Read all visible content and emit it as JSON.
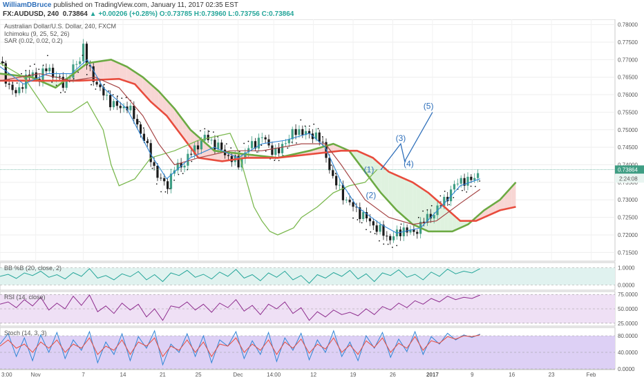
{
  "header": {
    "author": "WilliamDBruce",
    "published_text": "published on TradingView.com, January 11, 2017 02:35 EST",
    "symbol": "FX:AUDUSD, 240",
    "last": "0.73864",
    "change": "▲ +0.00206 (+0.28%)",
    "ohlc": {
      "o": "O:0.73785",
      "h": "H:0.73960",
      "l": "L:0.73756",
      "c": "C:0.73864"
    }
  },
  "colors": {
    "bull": "#3f9e84",
    "bear": "#1b1b1b",
    "cloud_up": "#dff2df",
    "cloud_down": "#f8d6d4",
    "span_a": "#e84c3d",
    "span_b": "#6caa43",
    "lagging": "#7cb950",
    "tenkan": "#2f86d6",
    "kijun": "#a54545",
    "accent": "#2e6fba"
  },
  "chart_data": [
    {
      "type": "line",
      "panel": "price",
      "title": "Australian Dollar/U.S. Dollar, 240, FXCM",
      "indicators": [
        "Ichimoku (9, 25, 52, 26)",
        "SAR (0.02, 0.02, 0.2)"
      ],
      "y_ticks": [
        "0.78000",
        "0.77500",
        "0.77000",
        "0.76500",
        "0.76000",
        "0.75500",
        "0.75000",
        "0.74500",
        "0.74000",
        "0.73500",
        "0.73000",
        "0.72500",
        "0.72000",
        "0.71500"
      ],
      "ylim": [
        0.7125,
        0.7815
      ],
      "last_price_label": "0.73864",
      "countdown_label": "2:24:08",
      "x_ticks": [
        "3:00",
        "Nov",
        "7",
        "14",
        "21",
        "25",
        "Dec",
        "14:00",
        "12",
        "19",
        "26",
        "2017",
        "9",
        "16",
        "23",
        "Feb"
      ],
      "x_positions": [
        0,
        9,
        21,
        31,
        41,
        50,
        60,
        69,
        79,
        89,
        99,
        109,
        119,
        129,
        139,
        149
      ],
      "x_range": [
        0,
        155
      ],
      "close_path": [
        [
          0,
          0.7695
        ],
        [
          2,
          0.763
        ],
        [
          4,
          0.76
        ],
        [
          6,
          0.764
        ],
        [
          8,
          0.766
        ],
        [
          10,
          0.7645
        ],
        [
          12,
          0.768
        ],
        [
          14,
          0.765
        ],
        [
          16,
          0.763
        ],
        [
          18,
          0.7665
        ],
        [
          20,
          0.77
        ],
        [
          21,
          0.774
        ],
        [
          22,
          0.768
        ],
        [
          24,
          0.764
        ],
        [
          26,
          0.76
        ],
        [
          28,
          0.758
        ],
        [
          30,
          0.756
        ],
        [
          32,
          0.757
        ],
        [
          34,
          0.753
        ],
        [
          36,
          0.748
        ],
        [
          38,
          0.742
        ],
        [
          40,
          0.736
        ],
        [
          42,
          0.734
        ],
        [
          44,
          0.739
        ],
        [
          46,
          0.74
        ],
        [
          48,
          0.743
        ],
        [
          50,
          0.746
        ],
        [
          52,
          0.748
        ],
        [
          54,
          0.746
        ],
        [
          56,
          0.744
        ],
        [
          58,
          0.742
        ],
        [
          60,
          0.74
        ],
        [
          62,
          0.744
        ],
        [
          64,
          0.746
        ],
        [
          66,
          0.748
        ],
        [
          68,
          0.745
        ],
        [
          70,
          0.743
        ],
        [
          72,
          0.747
        ],
        [
          74,
          0.749
        ],
        [
          76,
          0.75
        ],
        [
          78,
          0.748
        ],
        [
          80,
          0.749
        ],
        [
          82,
          0.743
        ],
        [
          84,
          0.736
        ],
        [
          86,
          0.732
        ],
        [
          88,
          0.729
        ],
        [
          90,
          0.727
        ],
        [
          92,
          0.725
        ],
        [
          94,
          0.723
        ],
        [
          96,
          0.721
        ],
        [
          98,
          0.719
        ],
        [
          100,
          0.72
        ],
        [
          102,
          0.722
        ],
        [
          104,
          0.72
        ],
        [
          106,
          0.723
        ],
        [
          108,
          0.725
        ],
        [
          110,
          0.727
        ],
        [
          112,
          0.73
        ],
        [
          114,
          0.733
        ],
        [
          116,
          0.736
        ],
        [
          118,
          0.735
        ],
        [
          120,
          0.737
        ],
        [
          121,
          0.7386
        ]
      ],
      "tenkan_path": [
        [
          0,
          0.768
        ],
        [
          6,
          0.763
        ],
        [
          12,
          0.766
        ],
        [
          18,
          0.766
        ],
        [
          22,
          0.77
        ],
        [
          26,
          0.762
        ],
        [
          32,
          0.756
        ],
        [
          38,
          0.743
        ],
        [
          42,
          0.736
        ],
        [
          48,
          0.742
        ],
        [
          54,
          0.745
        ],
        [
          60,
          0.742
        ],
        [
          66,
          0.746
        ],
        [
          72,
          0.747
        ],
        [
          78,
          0.749
        ],
        [
          82,
          0.745
        ],
        [
          86,
          0.735
        ],
        [
          90,
          0.728
        ],
        [
          96,
          0.723
        ],
        [
          100,
          0.7205
        ],
        [
          106,
          0.722
        ],
        [
          112,
          0.729
        ],
        [
          116,
          0.734
        ],
        [
          121,
          0.736
        ]
      ],
      "kijun_path": [
        [
          0,
          0.764
        ],
        [
          10,
          0.766
        ],
        [
          18,
          0.764
        ],
        [
          24,
          0.765
        ],
        [
          30,
          0.762
        ],
        [
          36,
          0.754
        ],
        [
          40,
          0.746
        ],
        [
          44,
          0.74
        ],
        [
          50,
          0.742
        ],
        [
          58,
          0.744
        ],
        [
          66,
          0.744
        ],
        [
          76,
          0.746
        ],
        [
          82,
          0.746
        ],
        [
          86,
          0.74
        ],
        [
          92,
          0.73
        ],
        [
          98,
          0.725
        ],
        [
          104,
          0.723
        ],
        [
          110,
          0.724
        ],
        [
          116,
          0.729
        ],
        [
          121,
          0.733
        ]
      ],
      "span_a_path": [
        [
          0,
          0.764
        ],
        [
          20,
          0.764
        ],
        [
          30,
          0.7645
        ],
        [
          34,
          0.763
        ],
        [
          38,
          0.758
        ],
        [
          42,
          0.754
        ],
        [
          46,
          0.748
        ],
        [
          50,
          0.742
        ],
        [
          56,
          0.741
        ],
        [
          62,
          0.742
        ],
        [
          70,
          0.742
        ],
        [
          78,
          0.743
        ],
        [
          86,
          0.744
        ],
        [
          90,
          0.744
        ],
        [
          94,
          0.742
        ],
        [
          98,
          0.738
        ],
        [
          104,
          0.735
        ],
        [
          108,
          0.732
        ],
        [
          112,
          0.728
        ],
        [
          116,
          0.724
        ],
        [
          120,
          0.724
        ],
        [
          126,
          0.727
        ],
        [
          130,
          0.728
        ]
      ],
      "span_b_path": [
        [
          0,
          0.766
        ],
        [
          8,
          0.765
        ],
        [
          14,
          0.762
        ],
        [
          22,
          0.769
        ],
        [
          28,
          0.77
        ],
        [
          32,
          0.768
        ],
        [
          36,
          0.765
        ],
        [
          40,
          0.761
        ],
        [
          44,
          0.756
        ],
        [
          48,
          0.75
        ],
        [
          54,
          0.744
        ],
        [
          62,
          0.743
        ],
        [
          70,
          0.742
        ],
        [
          78,
          0.744
        ],
        [
          84,
          0.746
        ],
        [
          88,
          0.744
        ],
        [
          92,
          0.738
        ],
        [
          96,
          0.732
        ],
        [
          100,
          0.727
        ],
        [
          104,
          0.723
        ],
        [
          108,
          0.721
        ],
        [
          114,
          0.721
        ],
        [
          118,
          0.723
        ],
        [
          122,
          0.727
        ],
        [
          126,
          0.73
        ],
        [
          130,
          0.735
        ]
      ],
      "lagging_path": [
        [
          0,
          0.769
        ],
        [
          6,
          0.765
        ],
        [
          12,
          0.755
        ],
        [
          18,
          0.755
        ],
        [
          22,
          0.758
        ],
        [
          26,
          0.75
        ],
        [
          28,
          0.74
        ],
        [
          30,
          0.734
        ],
        [
          34,
          0.736
        ],
        [
          38,
          0.742
        ],
        [
          44,
          0.744
        ],
        [
          50,
          0.747
        ],
        [
          54,
          0.748
        ],
        [
          58,
          0.749
        ],
        [
          60,
          0.744
        ],
        [
          62,
          0.736
        ],
        [
          64,
          0.728
        ],
        [
          66,
          0.724
        ],
        [
          68,
          0.721
        ],
        [
          70,
          0.72
        ],
        [
          72,
          0.721
        ],
        [
          74,
          0.722
        ],
        [
          76,
          0.725
        ],
        [
          80,
          0.728
        ],
        [
          84,
          0.732
        ],
        [
          88,
          0.734
        ],
        [
          92,
          0.735
        ],
        [
          95,
          0.7386
        ]
      ],
      "wave_path": [
        [
          96,
          0.7386
        ],
        [
          101,
          0.746
        ],
        [
          102,
          0.741
        ],
        [
          109,
          0.755
        ]
      ],
      "wave_labels": [
        {
          "text": "(1)",
          "x": 93,
          "y": 0.7378
        },
        {
          "text": "(2)",
          "x": 93.5,
          "y": 0.7305
        },
        {
          "text": "(3)",
          "x": 101,
          "y": 0.7468
        },
        {
          "text": "(4)",
          "x": 103,
          "y": 0.7395
        },
        {
          "text": "(5)",
          "x": 108,
          "y": 0.756
        }
      ]
    },
    {
      "type": "line",
      "panel": "bb",
      "title": "BB %B (20, close, 2)",
      "y_ticks": [
        "1.0000",
        "0.0000"
      ],
      "ylim": [
        -0.3,
        1.3
      ],
      "values": [
        0.5,
        0.62,
        0.38,
        0.7,
        0.55,
        0.8,
        0.45,
        0.6,
        0.35,
        0.72,
        0.5,
        0.95,
        0.4,
        0.55,
        0.3,
        0.65,
        0.48,
        0.78,
        0.3,
        0.6,
        0.2,
        0.7,
        0.55,
        0.85,
        0.45,
        0.62,
        0.35,
        0.75,
        0.5,
        0.9,
        0.4,
        0.6,
        0.25,
        0.7,
        0.45,
        0.8,
        0.3,
        0.55,
        0.1,
        0.6,
        0.4,
        0.72,
        0.5,
        0.85,
        0.35,
        0.65,
        0.2,
        0.7,
        0.55,
        0.88,
        0.45,
        0.62,
        0.3,
        0.75,
        0.5,
        0.92,
        0.65,
        0.8,
        0.7,
        0.95
      ]
    },
    {
      "type": "line",
      "panel": "rsi",
      "title": "RSI (14, close)",
      "y_ticks": [
        "75.0000",
        "50.0000",
        "25.0000"
      ],
      "ylim": [
        20,
        80
      ],
      "values": [
        58,
        62,
        52,
        66,
        55,
        70,
        48,
        60,
        50,
        72,
        56,
        74,
        45,
        55,
        42,
        60,
        48,
        58,
        36,
        50,
        30,
        55,
        52,
        62,
        48,
        58,
        44,
        60,
        52,
        66,
        46,
        56,
        40,
        58,
        50,
        62,
        42,
        52,
        30,
        45,
        36,
        48,
        40,
        44,
        38,
        50,
        40,
        54,
        48,
        60,
        52,
        64,
        58,
        68,
        62,
        72,
        66,
        70,
        68,
        74
      ]
    },
    {
      "type": "line",
      "panel": "stoch",
      "title": "Stoch (14, 3, 3)",
      "y_ticks": [
        "80.0000",
        "40.0000",
        "0.0000"
      ],
      "ylim": [
        0,
        100
      ],
      "k_values": [
        60,
        85,
        30,
        75,
        20,
        82,
        40,
        88,
        25,
        70,
        45,
        90,
        15,
        65,
        35,
        85,
        20,
        78,
        50,
        92,
        10,
        60,
        40,
        85,
        30,
        80,
        15,
        70,
        55,
        90,
        25,
        68,
        35,
        88,
        18,
        75,
        45,
        86,
        22,
        70,
        40,
        92,
        30,
        65,
        20,
        80,
        50,
        88,
        28,
        72,
        42,
        90,
        35,
        78,
        60,
        86,
        70,
        82,
        76,
        84
      ],
      "d_values": [
        55,
        70,
        50,
        60,
        40,
        65,
        50,
        70,
        40,
        60,
        50,
        75,
        35,
        55,
        45,
        70,
        35,
        65,
        55,
        75,
        30,
        55,
        45,
        70,
        40,
        65,
        30,
        60,
        55,
        75,
        40,
        60,
        45,
        70,
        35,
        65,
        50,
        72,
        38,
        60,
        48,
        75,
        40,
        58,
        35,
        68,
        52,
        75,
        40,
        62,
        50,
        78,
        45,
        68,
        62,
        78,
        72,
        80,
        78,
        82
      ]
    }
  ]
}
